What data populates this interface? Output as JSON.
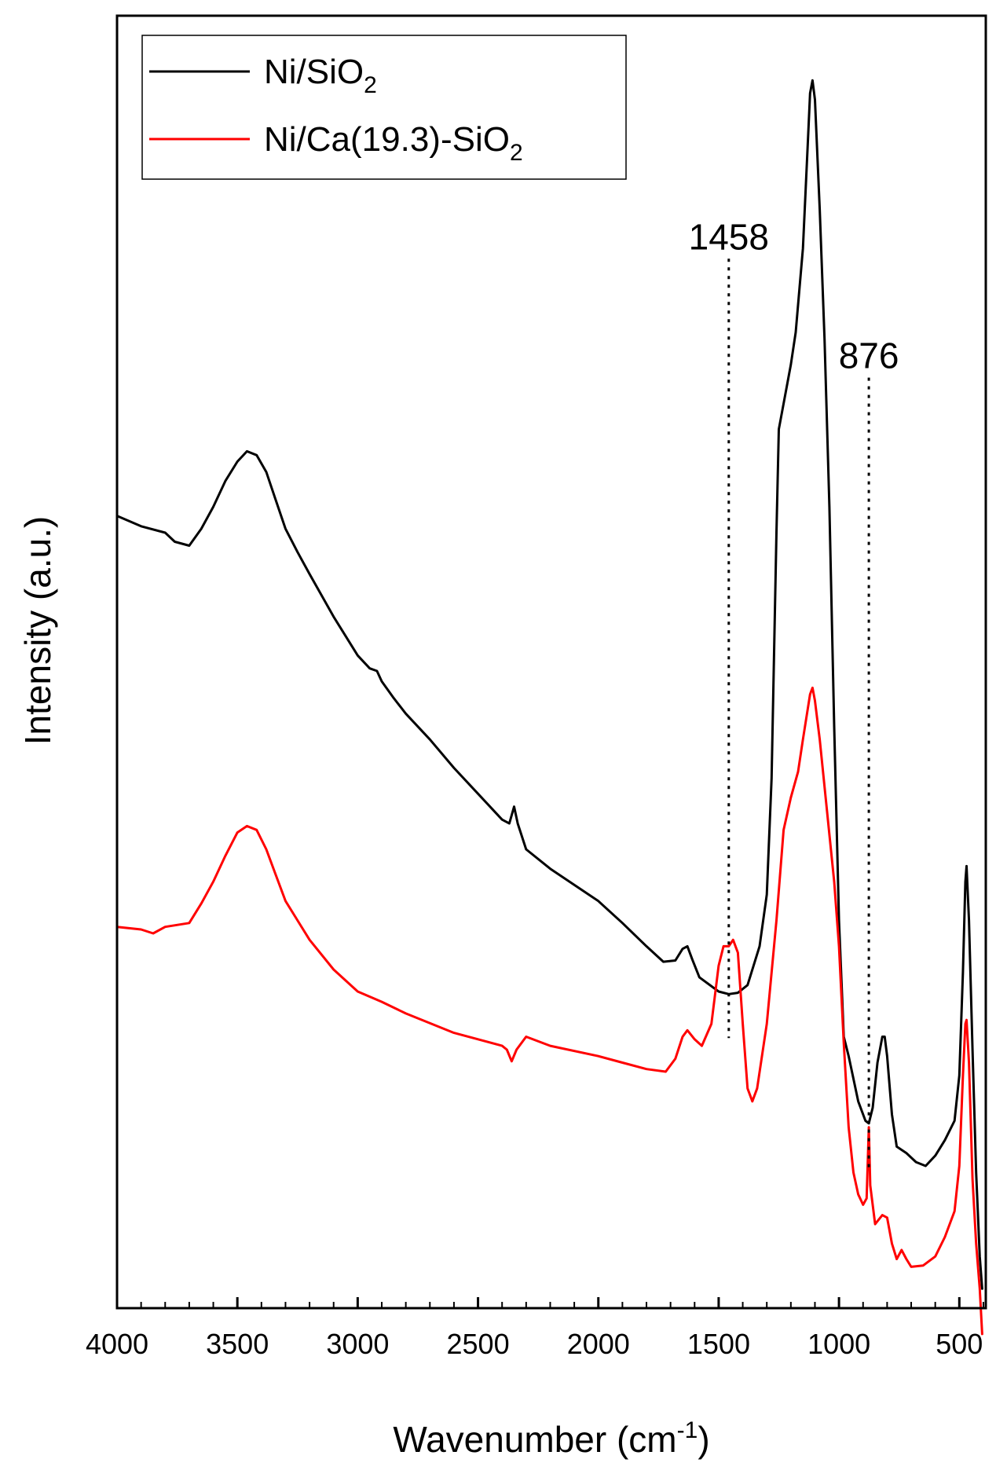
{
  "chart_data": {
    "type": "line",
    "title": "",
    "xlabel": "Wavenumber (cm",
    "xlabel_sup": "-1",
    "xlabel_close": ")",
    "ylabel": "Intensity (a.u.)",
    "x_reversed": true,
    "xlim": [
      4000,
      390
    ],
    "ylim": [
      0,
      100
    ],
    "x_ticks": [
      4000,
      3500,
      3000,
      2500,
      2000,
      1500,
      1000,
      500
    ],
    "x_tick_labels": [
      "4000",
      "3500",
      "3000",
      "2500",
      "2000",
      "1500",
      "1000",
      "500"
    ],
    "y_ticks_shown": false,
    "grid": false,
    "legend": {
      "placement": "top-left",
      "entries": [
        {
          "base": "Ni/SiO",
          "sub": "2",
          "color": "#000000"
        },
        {
          "base": "Ni/Ca(19.3)-SiO",
          "sub": "2",
          "color": "#ff0000"
        }
      ]
    },
    "annotations": [
      {
        "label": "1458",
        "x": 1458,
        "y_top": 81.2,
        "y_bottom": 20.9
      },
      {
        "label": "876",
        "x": 876,
        "y_top": 72.0,
        "y_bottom": 10.5
      }
    ],
    "series": [
      {
        "name": "Ni/SiO2",
        "color": "#000000",
        "points": [
          [
            4000,
            61.3
          ],
          [
            3900,
            60.5
          ],
          [
            3800,
            60.0
          ],
          [
            3760,
            59.3
          ],
          [
            3700,
            59.0
          ],
          [
            3650,
            60.3
          ],
          [
            3600,
            62.0
          ],
          [
            3550,
            64.0
          ],
          [
            3500,
            65.5
          ],
          [
            3460,
            66.3
          ],
          [
            3420,
            66.0
          ],
          [
            3380,
            64.7
          ],
          [
            3340,
            62.5
          ],
          [
            3300,
            60.3
          ],
          [
            3250,
            58.5
          ],
          [
            3200,
            56.8
          ],
          [
            3100,
            53.5
          ],
          [
            3000,
            50.5
          ],
          [
            2950,
            49.5
          ],
          [
            2920,
            49.3
          ],
          [
            2900,
            48.5
          ],
          [
            2850,
            47.2
          ],
          [
            2800,
            46.0
          ],
          [
            2700,
            44.0
          ],
          [
            2600,
            41.8
          ],
          [
            2500,
            39.8
          ],
          [
            2400,
            37.8
          ],
          [
            2370,
            37.5
          ],
          [
            2350,
            38.8
          ],
          [
            2335,
            37.5
          ],
          [
            2300,
            35.5
          ],
          [
            2200,
            34.0
          ],
          [
            2000,
            31.5
          ],
          [
            1900,
            29.8
          ],
          [
            1800,
            28.0
          ],
          [
            1730,
            26.8
          ],
          [
            1680,
            26.9
          ],
          [
            1650,
            27.8
          ],
          [
            1630,
            28.0
          ],
          [
            1610,
            27.0
          ],
          [
            1580,
            25.6
          ],
          [
            1500,
            24.5
          ],
          [
            1458,
            24.3
          ],
          [
            1420,
            24.4
          ],
          [
            1380,
            25.0
          ],
          [
            1330,
            28.0
          ],
          [
            1300,
            32.0
          ],
          [
            1280,
            41.0
          ],
          [
            1260,
            60.0
          ],
          [
            1250,
            68.0
          ],
          [
            1200,
            73.0
          ],
          [
            1180,
            75.5
          ],
          [
            1150,
            82.0
          ],
          [
            1130,
            90.0
          ],
          [
            1120,
            94.0
          ],
          [
            1110,
            95.0
          ],
          [
            1100,
            93.5
          ],
          [
            1080,
            85.0
          ],
          [
            1060,
            75.0
          ],
          [
            1040,
            62.0
          ],
          [
            1020,
            45.0
          ],
          [
            1000,
            30.0
          ],
          [
            980,
            21.0
          ],
          [
            960,
            19.5
          ],
          [
            920,
            16.0
          ],
          [
            890,
            14.5
          ],
          [
            876,
            14.3
          ],
          [
            860,
            15.5
          ],
          [
            840,
            19.0
          ],
          [
            820,
            21.0
          ],
          [
            810,
            21.0
          ],
          [
            800,
            19.5
          ],
          [
            780,
            15.0
          ],
          [
            760,
            12.5
          ],
          [
            720,
            12.0
          ],
          [
            680,
            11.3
          ],
          [
            640,
            11.0
          ],
          [
            600,
            11.8
          ],
          [
            560,
            13.0
          ],
          [
            520,
            14.5
          ],
          [
            500,
            18.0
          ],
          [
            485,
            26.0
          ],
          [
            475,
            33.0
          ],
          [
            470,
            34.2
          ],
          [
            460,
            30.0
          ],
          [
            445,
            20.0
          ],
          [
            430,
            10.5
          ],
          [
            415,
            4.0
          ],
          [
            405,
            1.5
          ]
        ]
      },
      {
        "name": "Ni/Ca(19.3)-SiO2",
        "color": "#ff0000",
        "points": [
          [
            4000,
            29.5
          ],
          [
            3900,
            29.3
          ],
          [
            3850,
            29.0
          ],
          [
            3800,
            29.5
          ],
          [
            3700,
            29.8
          ],
          [
            3650,
            31.3
          ],
          [
            3600,
            33.0
          ],
          [
            3550,
            35.0
          ],
          [
            3500,
            36.8
          ],
          [
            3460,
            37.3
          ],
          [
            3420,
            37.0
          ],
          [
            3380,
            35.5
          ],
          [
            3340,
            33.5
          ],
          [
            3300,
            31.5
          ],
          [
            3250,
            30.0
          ],
          [
            3200,
            28.5
          ],
          [
            3100,
            26.2
          ],
          [
            3000,
            24.5
          ],
          [
            2900,
            23.7
          ],
          [
            2800,
            22.8
          ],
          [
            2600,
            21.3
          ],
          [
            2500,
            20.8
          ],
          [
            2400,
            20.3
          ],
          [
            2380,
            20.0
          ],
          [
            2360,
            19.1
          ],
          [
            2340,
            20.0
          ],
          [
            2300,
            21.0
          ],
          [
            2200,
            20.3
          ],
          [
            2000,
            19.5
          ],
          [
            1900,
            19.0
          ],
          [
            1800,
            18.5
          ],
          [
            1720,
            18.3
          ],
          [
            1680,
            19.3
          ],
          [
            1650,
            21.0
          ],
          [
            1630,
            21.5
          ],
          [
            1600,
            20.8
          ],
          [
            1570,
            20.3
          ],
          [
            1530,
            22.0
          ],
          [
            1500,
            26.5
          ],
          [
            1480,
            28.0
          ],
          [
            1458,
            28.0
          ],
          [
            1440,
            28.5
          ],
          [
            1420,
            27.5
          ],
          [
            1400,
            22.0
          ],
          [
            1380,
            17.0
          ],
          [
            1360,
            16.0
          ],
          [
            1340,
            17.0
          ],
          [
            1300,
            22.0
          ],
          [
            1260,
            30.0
          ],
          [
            1230,
            37.0
          ],
          [
            1200,
            39.5
          ],
          [
            1170,
            41.5
          ],
          [
            1150,
            44.0
          ],
          [
            1120,
            47.5
          ],
          [
            1110,
            48.0
          ],
          [
            1100,
            47.0
          ],
          [
            1080,
            44.0
          ],
          [
            1050,
            38.5
          ],
          [
            1020,
            33.0
          ],
          [
            1000,
            28.0
          ],
          [
            980,
            20.5
          ],
          [
            960,
            14.0
          ],
          [
            940,
            10.5
          ],
          [
            920,
            8.8
          ],
          [
            900,
            8.0
          ],
          [
            885,
            8.5
          ],
          [
            876,
            14.0
          ],
          [
            870,
            9.5
          ],
          [
            850,
            6.5
          ],
          [
            820,
            7.2
          ],
          [
            800,
            7.0
          ],
          [
            780,
            5.0
          ],
          [
            760,
            3.8
          ],
          [
            740,
            4.5
          ],
          [
            720,
            3.8
          ],
          [
            700,
            3.2
          ],
          [
            650,
            3.3
          ],
          [
            600,
            4.0
          ],
          [
            560,
            5.5
          ],
          [
            520,
            7.5
          ],
          [
            500,
            11.0
          ],
          [
            485,
            18.0
          ],
          [
            475,
            22.0
          ],
          [
            470,
            22.3
          ],
          [
            460,
            19.0
          ],
          [
            445,
            10.0
          ],
          [
            430,
            5.0
          ],
          [
            415,
            1.5
          ],
          [
            405,
            -2.0
          ]
        ]
      }
    ]
  }
}
